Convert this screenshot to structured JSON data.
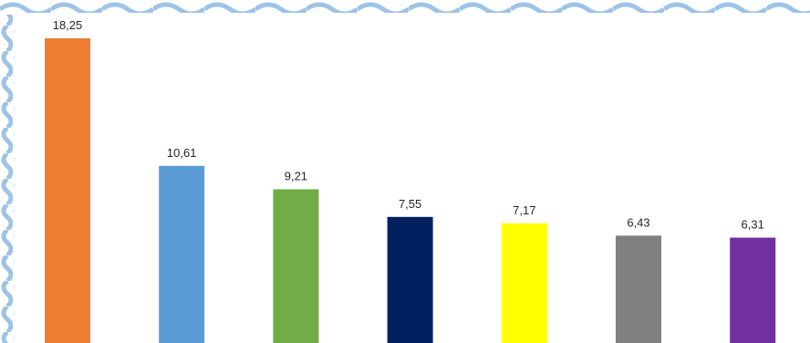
{
  "chart_data": {
    "type": "bar",
    "categories": [
      "",
      "",
      "",
      "",
      "",
      "",
      ""
    ],
    "values": [
      18.25,
      10.61,
      9.21,
      7.55,
      7.17,
      6.43,
      6.31
    ],
    "data_labels": [
      "18,25",
      "10,61",
      "9,21",
      "7,55",
      "7,17",
      "6,43",
      "6,31"
    ],
    "colors": [
      "#ED7D31",
      "#5B9BD5",
      "#70AD47",
      "#002060",
      "#FFFF00",
      "#808080",
      "#7030A0"
    ],
    "ylim": [
      0,
      19.3
    ],
    "grid": false,
    "legend": "none",
    "title": "",
    "xlabel": "",
    "ylabel": ""
  },
  "frame": {
    "border_color": "#9DC3E6",
    "background": "#ffffff"
  }
}
